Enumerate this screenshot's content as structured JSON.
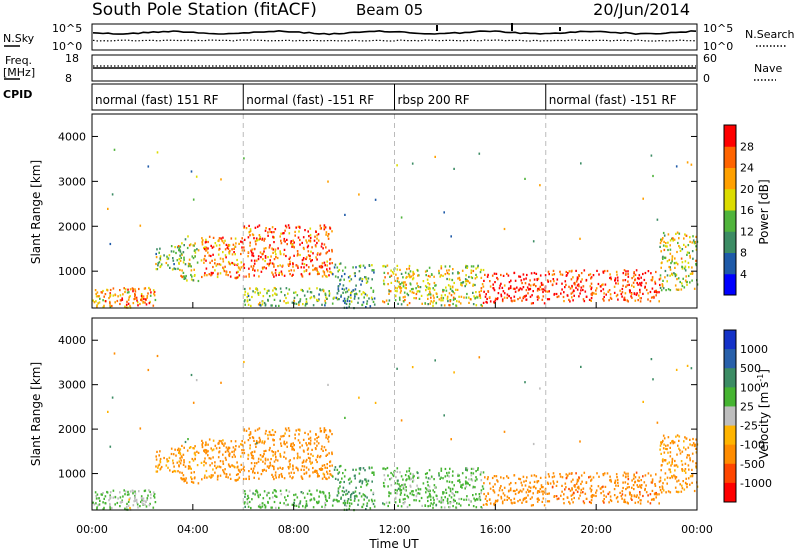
{
  "header": {
    "station": "South Pole Station (fitACF)",
    "beam": "Beam 05",
    "date": "20/Jun/2014"
  },
  "panels": {
    "nsky": {
      "label": "N.Sky",
      "ticks": [
        "10^5",
        "10^0"
      ],
      "right_label": "N.Search",
      "right_ticks": [
        "10^5",
        "10^0"
      ]
    },
    "freq": {
      "label_line1": "Freq.",
      "label_line2": "[MHz]",
      "ticks": [
        "18",
        "8"
      ],
      "right_label": "Nave",
      "right_ticks": [
        "60",
        "0"
      ]
    },
    "cpid": {
      "label": "CPID",
      "segments": [
        {
          "label": "normal (fast) 151 RF",
          "start": 0,
          "end": 6
        },
        {
          "label": "normal (fast) -151 RF",
          "start": 6,
          "end": 12
        },
        {
          "label": "rbsp 200 RF",
          "start": 12,
          "end": 18
        },
        {
          "label": "normal (fast) -151 RF",
          "start": 18,
          "end": 24
        }
      ]
    }
  },
  "axes": {
    "ylabel": "Slant Range [km]",
    "yticks": [
      "1000",
      "2000",
      "3000",
      "4000"
    ],
    "xlabel": "Time UT",
    "xticks": [
      "00:00",
      "04:00",
      "08:00",
      "12:00",
      "16:00",
      "20:00",
      "00:00"
    ]
  },
  "colorbars": {
    "power": {
      "label": "Power [dB]",
      "ticks": [
        "4",
        "8",
        "12",
        "16",
        "20",
        "24",
        "28"
      ],
      "colors": [
        "#0000ff",
        "#1e5aa8",
        "#3c8c64",
        "#50b43c",
        "#dcdc00",
        "#ffa000",
        "#ff6400",
        "#ff0000"
      ]
    },
    "velocity": {
      "label": "Velocity [m s",
      "label_sup": "-1",
      "label_end": "]",
      "ticks": [
        "1000",
        "500",
        "100",
        "25",
        "-25",
        "-100",
        "-500",
        "-1000"
      ],
      "colors": [
        "#1432c8",
        "#2860aa",
        "#3c8c64",
        "#46b432",
        "#bebebe",
        "#ffb400",
        "#ff8c00",
        "#ff4600",
        "#ff0000"
      ]
    }
  },
  "chart_data": {
    "type": "heatmap",
    "x_range_hours": [
      0,
      24
    ],
    "y_range_km": [
      180,
      4500
    ],
    "power_range_db": [
      0,
      32
    ],
    "grid": "dashed vertical lines at 06:00, 12:00, 18:00",
    "scatter_regions": [
      {
        "t0": 0.0,
        "t1": 2.5,
        "r0": 200,
        "r1": 650,
        "power": 22,
        "velocity": 40
      },
      {
        "t0": 1.0,
        "t1": 2.2,
        "r0": 250,
        "r1": 480,
        "power": 28,
        "velocity": 0
      },
      {
        "t0": 2.5,
        "t1": 3.5,
        "r0": 1050,
        "r1": 1600,
        "power": 14,
        "velocity": -120
      },
      {
        "t0": 3.4,
        "t1": 4.2,
        "r0": 800,
        "r1": 1650,
        "power": 18,
        "velocity": -140
      },
      {
        "t0": 4.3,
        "t1": 6.0,
        "r0": 850,
        "r1": 1800,
        "power": 24,
        "velocity": -180
      },
      {
        "t0": 6.0,
        "t1": 9.5,
        "r0": 900,
        "r1": 2050,
        "power": 26,
        "velocity": -220
      },
      {
        "t0": 6.0,
        "t1": 9.5,
        "r0": 250,
        "r1": 650,
        "power": 14,
        "velocity": 60
      },
      {
        "t0": 9.5,
        "t1": 11.2,
        "r0": 200,
        "r1": 1200,
        "power": 12,
        "velocity": 100
      },
      {
        "t0": 11.5,
        "t1": 15.5,
        "r0": 250,
        "r1": 1150,
        "power": 18,
        "velocity": 50
      },
      {
        "t0": 15.5,
        "t1": 18.0,
        "r0": 300,
        "r1": 1000,
        "power": 30,
        "velocity": -300
      },
      {
        "t0": 18.0,
        "t1": 22.5,
        "r0": 350,
        "r1": 1050,
        "power": 29,
        "velocity": -350
      },
      {
        "t0": 22.5,
        "t1": 24.0,
        "r0": 600,
        "r1": 1900,
        "power": 18,
        "velocity": -150
      }
    ]
  }
}
